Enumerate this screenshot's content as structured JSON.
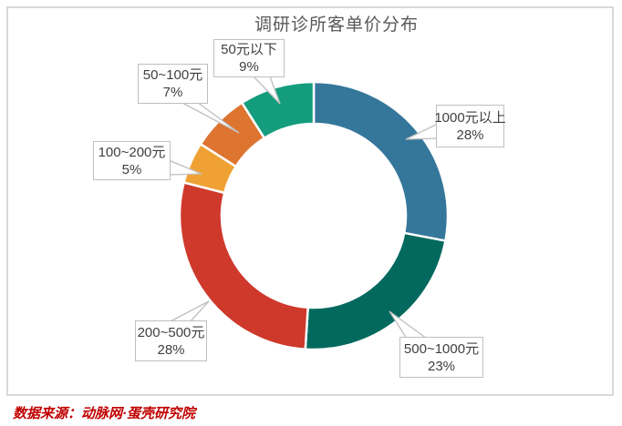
{
  "title": "调研诊所客单价分布",
  "source_note": "数据来源：动脉网·蛋壳研究院",
  "chart_data": {
    "type": "pie",
    "donut": true,
    "title": "调研诊所客单价分布",
    "start_angle_deg": 0,
    "direction": "clockwise",
    "legend": "none (callout labels)",
    "slices": [
      {
        "label": "1000元以上",
        "value": 28,
        "pct_label": "28%",
        "color": "#35779b"
      },
      {
        "label": "500~1000元",
        "value": 23,
        "pct_label": "23%",
        "color": "#03695e"
      },
      {
        "label": "200~500元",
        "value": 28,
        "pct_label": "28%",
        "color": "#ce392c"
      },
      {
        "label": "100~200元",
        "value": 5,
        "pct_label": "5%",
        "color": "#efa233"
      },
      {
        "label": "50~100元",
        "value": 7,
        "pct_label": "7%",
        "color": "#dd7430"
      },
      {
        "label": "50元以下",
        "value": 9,
        "pct_label": "9%",
        "color": "#149d7d"
      }
    ]
  }
}
